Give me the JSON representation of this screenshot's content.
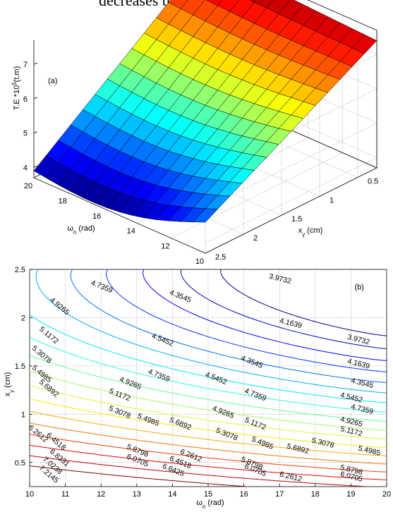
{
  "page_text": {
    "cut_sentence": "decreases the transmitted energy."
  },
  "chart_data": [
    {
      "type": "surface",
      "panel_label": "(a)",
      "zlabel": "T.E *10^5(t.m)",
      "xlabel": "ω_n (rad)",
      "ylabel": "x_y (cm)",
      "x_range": [
        10,
        20
      ],
      "y_range": [
        0.25,
        2.5
      ],
      "z_range": [
        3.7,
        7.7
      ],
      "x_ticks": [
        20,
        18,
        16,
        14,
        12,
        10
      ],
      "y_ticks": [
        0.5,
        1,
        1.5,
        2,
        2.5
      ],
      "z_ticks": [
        4,
        5,
        6,
        7
      ],
      "grid": true,
      "colormap": "jet",
      "corner_values": [
        {
          "wn": 20,
          "xy": 0.25,
          "te": 7.65
        },
        {
          "wn": 20,
          "xy": 2.5,
          "te": 3.9
        },
        {
          "wn": 10,
          "xy": 0.25,
          "te": 7.4
        },
        {
          "wn": 10,
          "xy": 2.5,
          "te": 4.6
        }
      ]
    },
    {
      "type": "contour",
      "panel_label": "(b)",
      "xlabel": "ω_n (rad)",
      "ylabel": "x_y (cm)",
      "xlim": [
        10,
        20
      ],
      "ylim": [
        0.25,
        2.5
      ],
      "x_ticks": [
        10,
        11,
        12,
        13,
        14,
        15,
        16,
        17,
        18,
        19,
        20
      ],
      "y_ticks": [
        0.5,
        1,
        1.5,
        2,
        2.5
      ],
      "grid": true,
      "levels": [
        3.9732,
        4.1639,
        4.3545,
        4.5452,
        4.7359,
        4.9265,
        5.1172,
        5.3078,
        5.4985,
        5.6892,
        5.8798,
        6.0705,
        6.2612,
        6.4518,
        6.6425,
        6.8331,
        7.0238,
        7.2145
      ],
      "labels": [
        {
          "text": "3.9732",
          "x": 17.0,
          "y": 2.38
        },
        {
          "text": "3.9732",
          "x": 19.2,
          "y": 1.75
        },
        {
          "text": "4.1639",
          "x": 17.3,
          "y": 1.92
        },
        {
          "text": "4.1639",
          "x": 19.2,
          "y": 1.5
        },
        {
          "text": "4.3545",
          "x": 14.2,
          "y": 2.2
        },
        {
          "text": "4.3545",
          "x": 16.2,
          "y": 1.52
        },
        {
          "text": "4.3545",
          "x": 19.3,
          "y": 1.3
        },
        {
          "text": "4.5452",
          "x": 13.7,
          "y": 1.75
        },
        {
          "text": "4.5452",
          "x": 15.2,
          "y": 1.35
        },
        {
          "text": "4.5452",
          "x": 19.0,
          "y": 1.15
        },
        {
          "text": "4.7359",
          "x": 12.0,
          "y": 2.3
        },
        {
          "text": "4.7359",
          "x": 13.6,
          "y": 1.38
        },
        {
          "text": "4.7359",
          "x": 16.3,
          "y": 1.18
        },
        {
          "text": "4.7359",
          "x": 19.3,
          "y": 1.03
        },
        {
          "text": "4.9265",
          "x": 10.8,
          "y": 2.1
        },
        {
          "text": "4.9265",
          "x": 12.8,
          "y": 1.3
        },
        {
          "text": "4.9265",
          "x": 15.4,
          "y": 1.0
        },
        {
          "text": "4.9265",
          "x": 19.0,
          "y": 0.9
        },
        {
          "text": "5.1172",
          "x": 10.5,
          "y": 1.8
        },
        {
          "text": "5.1172",
          "x": 12.5,
          "y": 1.18
        },
        {
          "text": "5.1172",
          "x": 16.3,
          "y": 0.88
        },
        {
          "text": "5.1172",
          "x": 19.0,
          "y": 0.8
        },
        {
          "text": "5.3078",
          "x": 10.3,
          "y": 1.6
        },
        {
          "text": "5.3078",
          "x": 12.5,
          "y": 1.0
        },
        {
          "text": "5.3078",
          "x": 15.5,
          "y": 0.77
        },
        {
          "text": "5.3078",
          "x": 18.2,
          "y": 0.68
        },
        {
          "text": "5.4985",
          "x": 10.3,
          "y": 1.4
        },
        {
          "text": "5.4985",
          "x": 13.3,
          "y": 0.92
        },
        {
          "text": "5.4985",
          "x": 16.5,
          "y": 0.68
        },
        {
          "text": "5.4985",
          "x": 19.5,
          "y": 0.6
        },
        {
          "text": "5.6892",
          "x": 10.5,
          "y": 1.25
        },
        {
          "text": "5.6892",
          "x": 14.2,
          "y": 0.88
        },
        {
          "text": "5.6892",
          "x": 17.5,
          "y": 0.62
        },
        {
          "text": "5.8798",
          "x": 13.0,
          "y": 0.6
        },
        {
          "text": "5.8798",
          "x": 16.2,
          "y": 0.47
        },
        {
          "text": "5.8798",
          "x": 19.0,
          "y": 0.4
        },
        {
          "text": "6.0705",
          "x": 13.0,
          "y": 0.5
        },
        {
          "text": "6.0705",
          "x": 16.3,
          "y": 0.4
        },
        {
          "text": "6.0705",
          "x": 19.0,
          "y": 0.33
        },
        {
          "text": "6.2612",
          "x": 10.2,
          "y": 0.78
        },
        {
          "text": "6.2612",
          "x": 14.5,
          "y": 0.55
        },
        {
          "text": "6.2612",
          "x": 17.3,
          "y": 0.33
        },
        {
          "text": "6.4518",
          "x": 10.7,
          "y": 0.7
        },
        {
          "text": "6.4518",
          "x": 14.2,
          "y": 0.48
        },
        {
          "text": "6.6425",
          "x": 14.0,
          "y": 0.4
        },
        {
          "text": "6.8331",
          "x": 10.8,
          "y": 0.53
        },
        {
          "text": "7.0238",
          "x": 10.6,
          "y": 0.45
        },
        {
          "text": "7.2145",
          "x": 10.5,
          "y": 0.36
        }
      ]
    }
  ]
}
